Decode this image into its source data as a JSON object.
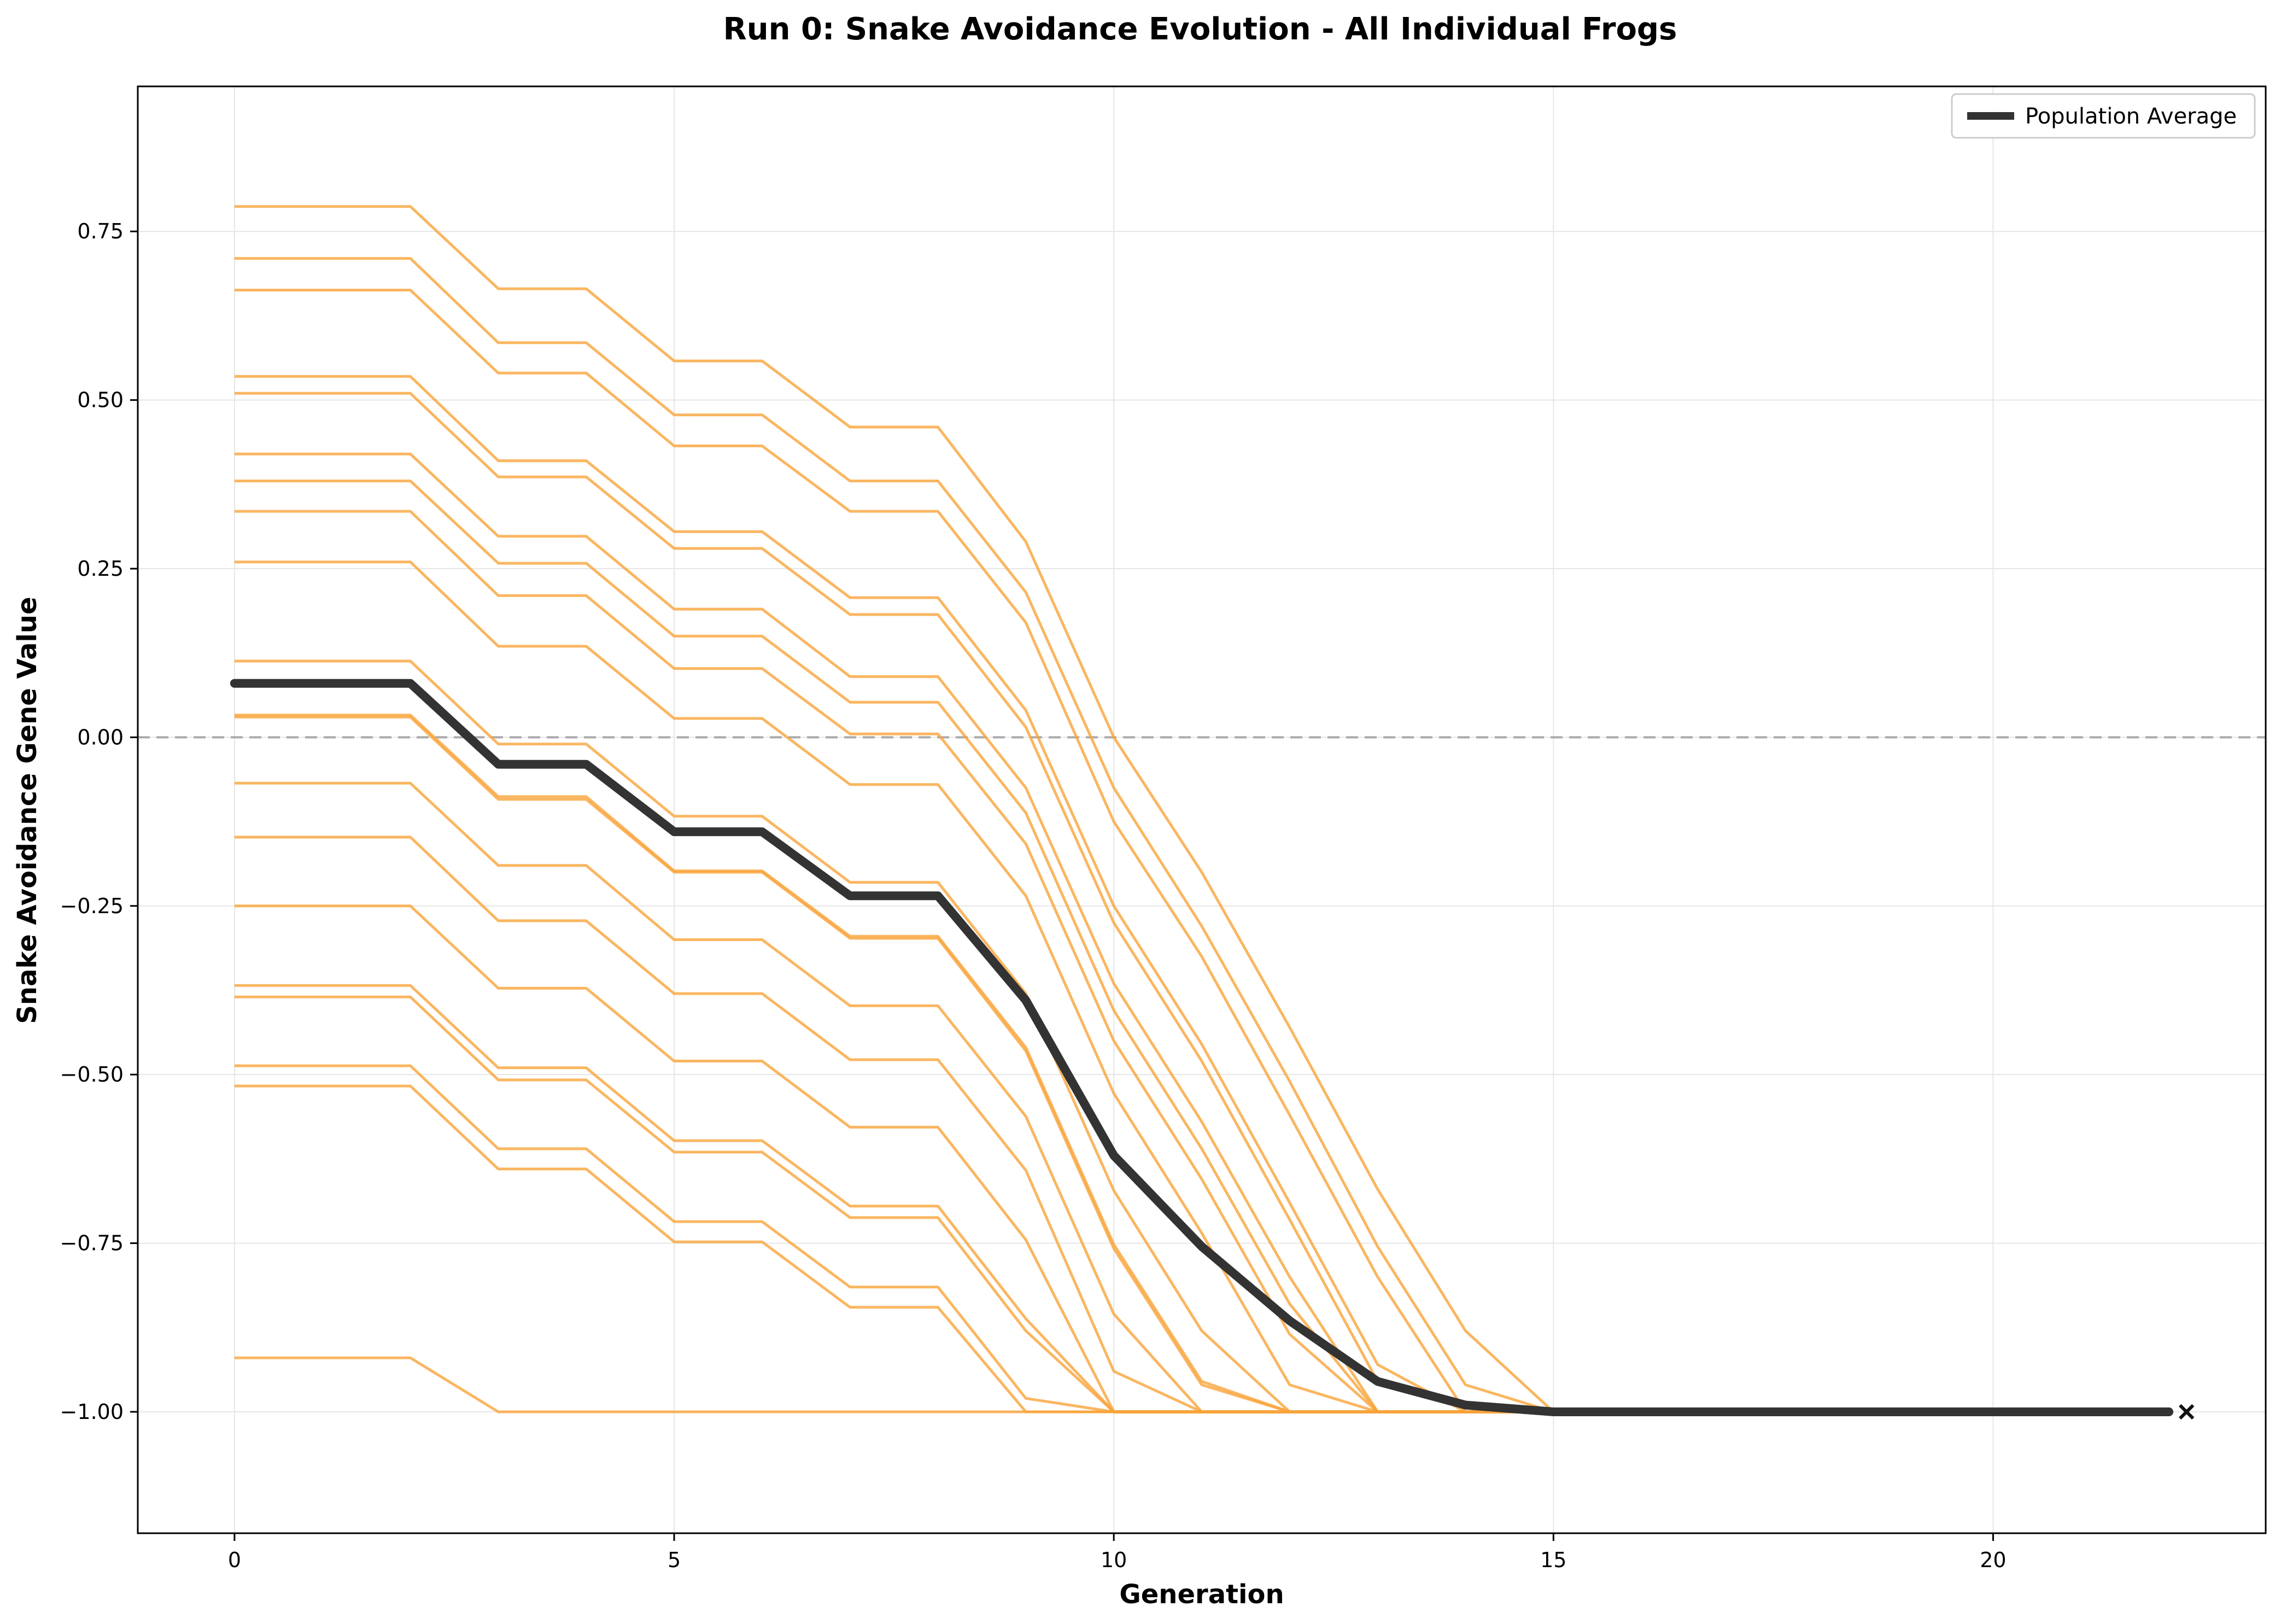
{
  "chart_data": {
    "type": "line",
    "title": "Run 0: Snake Avoidance Evolution - All Individual Frogs",
    "xlabel": "Generation",
    "ylabel": "Snake Avoidance Gene Value",
    "xlim": [
      -1.1,
      23.1
    ],
    "ylim": [
      -1.18,
      0.965
    ],
    "xticks": [
      0,
      5,
      10,
      15,
      20
    ],
    "yticks": [
      0.75,
      0.5,
      0.25,
      0.0,
      -0.25,
      -0.5,
      -0.75,
      -1.0
    ],
    "ytick_labels": [
      "0.75",
      "0.50",
      "0.25",
      "0.00",
      "−0.25",
      "−0.50",
      "−0.75",
      "−1.00"
    ],
    "grid": true,
    "legend_position": "top-right",
    "reference_line": {
      "y": 0,
      "style": "dashed",
      "color": "#aaaaaa"
    },
    "colors": {
      "individual": "#f9a43a",
      "average": "#333333",
      "marker": "#111111"
    },
    "average_series": {
      "name": "Population Average",
      "x": [
        0,
        1,
        2,
        3,
        4,
        5,
        6,
        7,
        8,
        9,
        10,
        11,
        12,
        13,
        14,
        15,
        16,
        17,
        18,
        19,
        20,
        21,
        22
      ],
      "values": [
        0.08,
        0.08,
        0.08,
        -0.04,
        -0.04,
        -0.14,
        -0.14,
        -0.235,
        -0.235,
        -0.39,
        -0.62,
        -0.755,
        -0.865,
        -0.955,
        -0.99,
        -1.0,
        -1.0,
        -1.0,
        -1.0,
        -1.0,
        -1.0,
        -1.0,
        -1.0
      ]
    },
    "end_marker": {
      "x": 22.2,
      "y": -1.0,
      "symbol": "×"
    },
    "individual_series": [
      {
        "x": [
          0,
          1,
          2,
          3,
          4,
          5,
          6,
          7,
          8,
          9,
          10,
          11,
          12,
          13,
          14,
          15
        ],
        "values": [
          0.787,
          0.787,
          0.787,
          0.665,
          0.665,
          0.558,
          0.558,
          0.46,
          0.46,
          0.29,
          0.0,
          -0.2,
          -0.43,
          -0.67,
          -0.88,
          -1.0
        ]
      },
      {
        "x": [
          0,
          1,
          2,
          3,
          4,
          5,
          6,
          7,
          8,
          9,
          10,
          11,
          12,
          13,
          14,
          15
        ],
        "values": [
          0.71,
          0.71,
          0.71,
          0.585,
          0.585,
          0.478,
          0.478,
          0.38,
          0.38,
          0.215,
          -0.075,
          -0.28,
          -0.51,
          -0.755,
          -0.96,
          -1.0
        ]
      },
      {
        "x": [
          0,
          1,
          2,
          3,
          4,
          5,
          6,
          7,
          8,
          9,
          10,
          11,
          12,
          13,
          14
        ],
        "values": [
          0.663,
          0.663,
          0.663,
          0.54,
          0.54,
          0.432,
          0.432,
          0.335,
          0.335,
          0.17,
          -0.125,
          -0.325,
          -0.56,
          -0.8,
          -1.0
        ]
      },
      {
        "x": [
          0,
          1,
          2,
          3,
          4,
          5,
          6,
          7,
          8,
          9,
          10,
          11,
          12,
          13,
          14
        ],
        "values": [
          0.535,
          0.535,
          0.535,
          0.41,
          0.41,
          0.305,
          0.305,
          0.207,
          0.207,
          0.04,
          -0.25,
          -0.455,
          -0.69,
          -0.93,
          -1.0
        ]
      },
      {
        "x": [
          0,
          1,
          2,
          3,
          4,
          5,
          6,
          7,
          8,
          9,
          10,
          11,
          12,
          13
        ],
        "values": [
          0.51,
          0.51,
          0.51,
          0.386,
          0.386,
          0.28,
          0.28,
          0.182,
          0.182,
          0.015,
          -0.275,
          -0.48,
          -0.715,
          -0.955
        ]
      },
      {
        "x": [
          0,
          1,
          2,
          3,
          4,
          5,
          6,
          7,
          8,
          9,
          10,
          11,
          12,
          13
        ],
        "values": [
          0.42,
          0.42,
          0.42,
          0.298,
          0.298,
          0.19,
          0.19,
          0.09,
          0.09,
          -0.075,
          -0.365,
          -0.57,
          -0.8,
          -1.0
        ]
      },
      {
        "x": [
          0,
          1,
          2,
          3,
          4,
          5,
          6,
          7,
          8,
          9,
          10,
          11,
          12,
          13
        ],
        "values": [
          0.38,
          0.38,
          0.38,
          0.258,
          0.258,
          0.15,
          0.15,
          0.052,
          0.052,
          -0.112,
          -0.405,
          -0.61,
          -0.84,
          -1.0
        ]
      },
      {
        "x": [
          0,
          1,
          2,
          3,
          4,
          5,
          6,
          7,
          8,
          9,
          10,
          11,
          12,
          13
        ],
        "values": [
          0.335,
          0.335,
          0.335,
          0.21,
          0.21,
          0.102,
          0.102,
          0.005,
          0.005,
          -0.158,
          -0.45,
          -0.655,
          -0.885,
          -1.0
        ]
      },
      {
        "x": [
          0,
          1,
          2,
          3,
          4,
          5,
          6,
          7,
          8,
          9,
          10,
          11,
          12,
          13
        ],
        "values": [
          0.26,
          0.26,
          0.26,
          0.135,
          0.135,
          0.028,
          0.028,
          -0.07,
          -0.07,
          -0.235,
          -0.528,
          -0.735,
          -0.96,
          -1.0
        ]
      },
      {
        "x": [
          0,
          1,
          2,
          3,
          4,
          5,
          6,
          7,
          8,
          9,
          10,
          11,
          12
        ],
        "values": [
          0.113,
          0.113,
          0.113,
          -0.01,
          -0.01,
          -0.117,
          -0.117,
          -0.215,
          -0.215,
          -0.38,
          -0.672,
          -0.88,
          -1.0
        ]
      },
      {
        "x": [
          0,
          1,
          2,
          3,
          4,
          5,
          6,
          7,
          8,
          9,
          10,
          11,
          12
        ],
        "values": [
          0.033,
          0.033,
          0.033,
          -0.088,
          -0.088,
          -0.198,
          -0.198,
          -0.295,
          -0.295,
          -0.46,
          -0.752,
          -0.955,
          -1.0
        ]
      },
      {
        "x": [
          0,
          1,
          2,
          3,
          4,
          5,
          6,
          7,
          8,
          9,
          10,
          11,
          12
        ],
        "values": [
          0.03,
          0.03,
          0.03,
          -0.092,
          -0.092,
          -0.2,
          -0.2,
          -0.298,
          -0.298,
          -0.465,
          -0.758,
          -0.96,
          -1.0
        ]
      },
      {
        "x": [
          0,
          1,
          2,
          3,
          4,
          5,
          6,
          7,
          8,
          9,
          10,
          11
        ],
        "values": [
          -0.068,
          -0.068,
          -0.068,
          -0.19,
          -0.19,
          -0.3,
          -0.3,
          -0.398,
          -0.398,
          -0.562,
          -0.855,
          -1.0
        ]
      },
      {
        "x": [
          0,
          1,
          2,
          3,
          4,
          5,
          6,
          7,
          8,
          9,
          10,
          11
        ],
        "values": [
          -0.148,
          -0.148,
          -0.148,
          -0.272,
          -0.272,
          -0.38,
          -0.38,
          -0.478,
          -0.478,
          -0.642,
          -0.94,
          -1.0
        ]
      },
      {
        "x": [
          0,
          1,
          2,
          3,
          4,
          5,
          6,
          7,
          8,
          9,
          10
        ],
        "values": [
          -0.25,
          -0.25,
          -0.25,
          -0.372,
          -0.372,
          -0.48,
          -0.48,
          -0.578,
          -0.578,
          -0.745,
          -1.0
        ]
      },
      {
        "x": [
          0,
          1,
          2,
          3,
          4,
          5,
          6,
          7,
          8,
          9,
          10
        ],
        "values": [
          -0.368,
          -0.368,
          -0.368,
          -0.49,
          -0.49,
          -0.598,
          -0.598,
          -0.695,
          -0.695,
          -0.862,
          -1.0
        ]
      },
      {
        "x": [
          0,
          1,
          2,
          3,
          4,
          5,
          6,
          7,
          8,
          9,
          10
        ],
        "values": [
          -0.385,
          -0.385,
          -0.385,
          -0.508,
          -0.508,
          -0.615,
          -0.615,
          -0.712,
          -0.712,
          -0.88,
          -1.0
        ]
      },
      {
        "x": [
          0,
          1,
          2,
          3,
          4,
          5,
          6,
          7,
          8,
          9,
          10
        ],
        "values": [
          -0.487,
          -0.487,
          -0.487,
          -0.61,
          -0.61,
          -0.718,
          -0.718,
          -0.815,
          -0.815,
          -0.98,
          -1.0
        ]
      },
      {
        "x": [
          0,
          1,
          2,
          3,
          4,
          5,
          6,
          7,
          8,
          9,
          10
        ],
        "values": [
          -0.517,
          -0.517,
          -0.517,
          -0.64,
          -0.64,
          -0.748,
          -0.748,
          -0.845,
          -0.845,
          -1.0,
          -1.0
        ]
      },
      {
        "x": [
          0,
          1,
          2,
          3,
          4,
          5,
          6,
          7,
          8,
          9,
          10
        ],
        "values": [
          -0.92,
          -0.92,
          -0.92,
          -1.0,
          -1.0,
          -1.0,
          -1.0,
          -1.0,
          -1.0,
          -1.0,
          -1.0
        ]
      }
    ]
  }
}
